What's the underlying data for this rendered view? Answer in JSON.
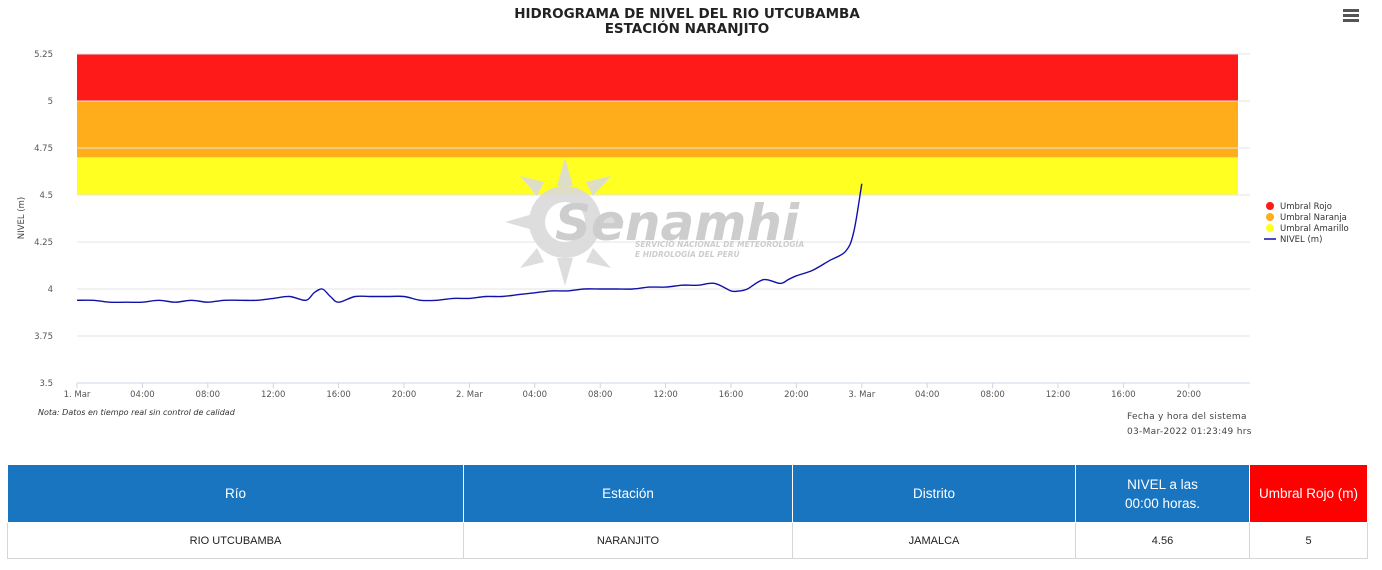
{
  "title_line1": "HIDROGRAMA DE NIVEL DEL RIO UTCUBAMBA",
  "title_line2": "ESTACIÓN NARANJITO",
  "menu_icon": "hamburger-menu-icon",
  "watermark": {
    "brand": "Senamhi",
    "line1": "SERVICIO NACIONAL DE METEOROLOGÍA",
    "line2": "E HIDROLOGÍA DEL PERÚ"
  },
  "note": "Nota: Datos en tiempo real sin control de calidad",
  "system_time_label": "Fecha y hora del sistema",
  "system_time_value": "03-Mar-2022 01:23:49 hrs",
  "chart_data": {
    "type": "line",
    "ylabel": "NIVEL (m)",
    "ylim": [
      3.5,
      5.25
    ],
    "yticks": [
      "3.5",
      "3.75",
      "4",
      "4.25",
      "4.5",
      "4.75",
      "5",
      "5.25"
    ],
    "xlim_hours": [
      0,
      72
    ],
    "xticks": [
      "1. Mar",
      "04:00",
      "08:00",
      "12:00",
      "16:00",
      "20:00",
      "2. Mar",
      "04:00",
      "08:00",
      "12:00",
      "16:00",
      "20:00",
      "3. Mar",
      "04:00",
      "08:00",
      "12:00",
      "16:00",
      "20:00"
    ],
    "legend_position": "right",
    "bands": [
      {
        "name": "Umbral Rojo",
        "from": 5.0,
        "to": 5.25,
        "color": "#ff1a1a"
      },
      {
        "name": "Umbral Naranja",
        "from": 4.7,
        "to": 5.0,
        "color": "#ffad1a"
      },
      {
        "name": "Umbral Amarillo",
        "from": 4.5,
        "to": 4.7,
        "color": "#ffff22"
      }
    ],
    "series": [
      {
        "name": "NIVEL (m)",
        "color": "#1010aa",
        "x": [
          0,
          1,
          2,
          3,
          4,
          5,
          6,
          7,
          8,
          9,
          10,
          11,
          12,
          13,
          14,
          14.5,
          15,
          15.5,
          16,
          17,
          18,
          19,
          20,
          21,
          22,
          23,
          24,
          25,
          26,
          27,
          28,
          29,
          30,
          31,
          32,
          33,
          34,
          35,
          36,
          37,
          38,
          39,
          40,
          40.5,
          41,
          42,
          43,
          43.5,
          44,
          45,
          46,
          47,
          47.5,
          48
        ],
        "y": [
          3.94,
          3.94,
          3.93,
          3.93,
          3.93,
          3.94,
          3.93,
          3.94,
          3.93,
          3.94,
          3.94,
          3.94,
          3.95,
          3.96,
          3.94,
          3.98,
          4.0,
          3.96,
          3.93,
          3.96,
          3.96,
          3.96,
          3.96,
          3.94,
          3.94,
          3.95,
          3.95,
          3.96,
          3.96,
          3.97,
          3.98,
          3.99,
          3.99,
          4.0,
          4.0,
          4.0,
          4.0,
          4.01,
          4.01,
          4.02,
          4.02,
          4.03,
          3.99,
          3.99,
          4.0,
          4.05,
          4.03,
          4.05,
          4.07,
          4.1,
          4.15,
          4.2,
          4.3,
          4.56
        ]
      }
    ]
  },
  "table": {
    "headers": [
      "Río",
      "Estación",
      "Distrito",
      "NIVEL a las 00:00 horas.",
      "Umbral Rojo (m)"
    ],
    "header_nivel_line1": "NIVEL a las",
    "header_nivel_line2": "00:00 horas.",
    "row": [
      "RIO UTCUBAMBA",
      "NARANJITO",
      "JAMALCA",
      "4.56",
      "5"
    ]
  }
}
